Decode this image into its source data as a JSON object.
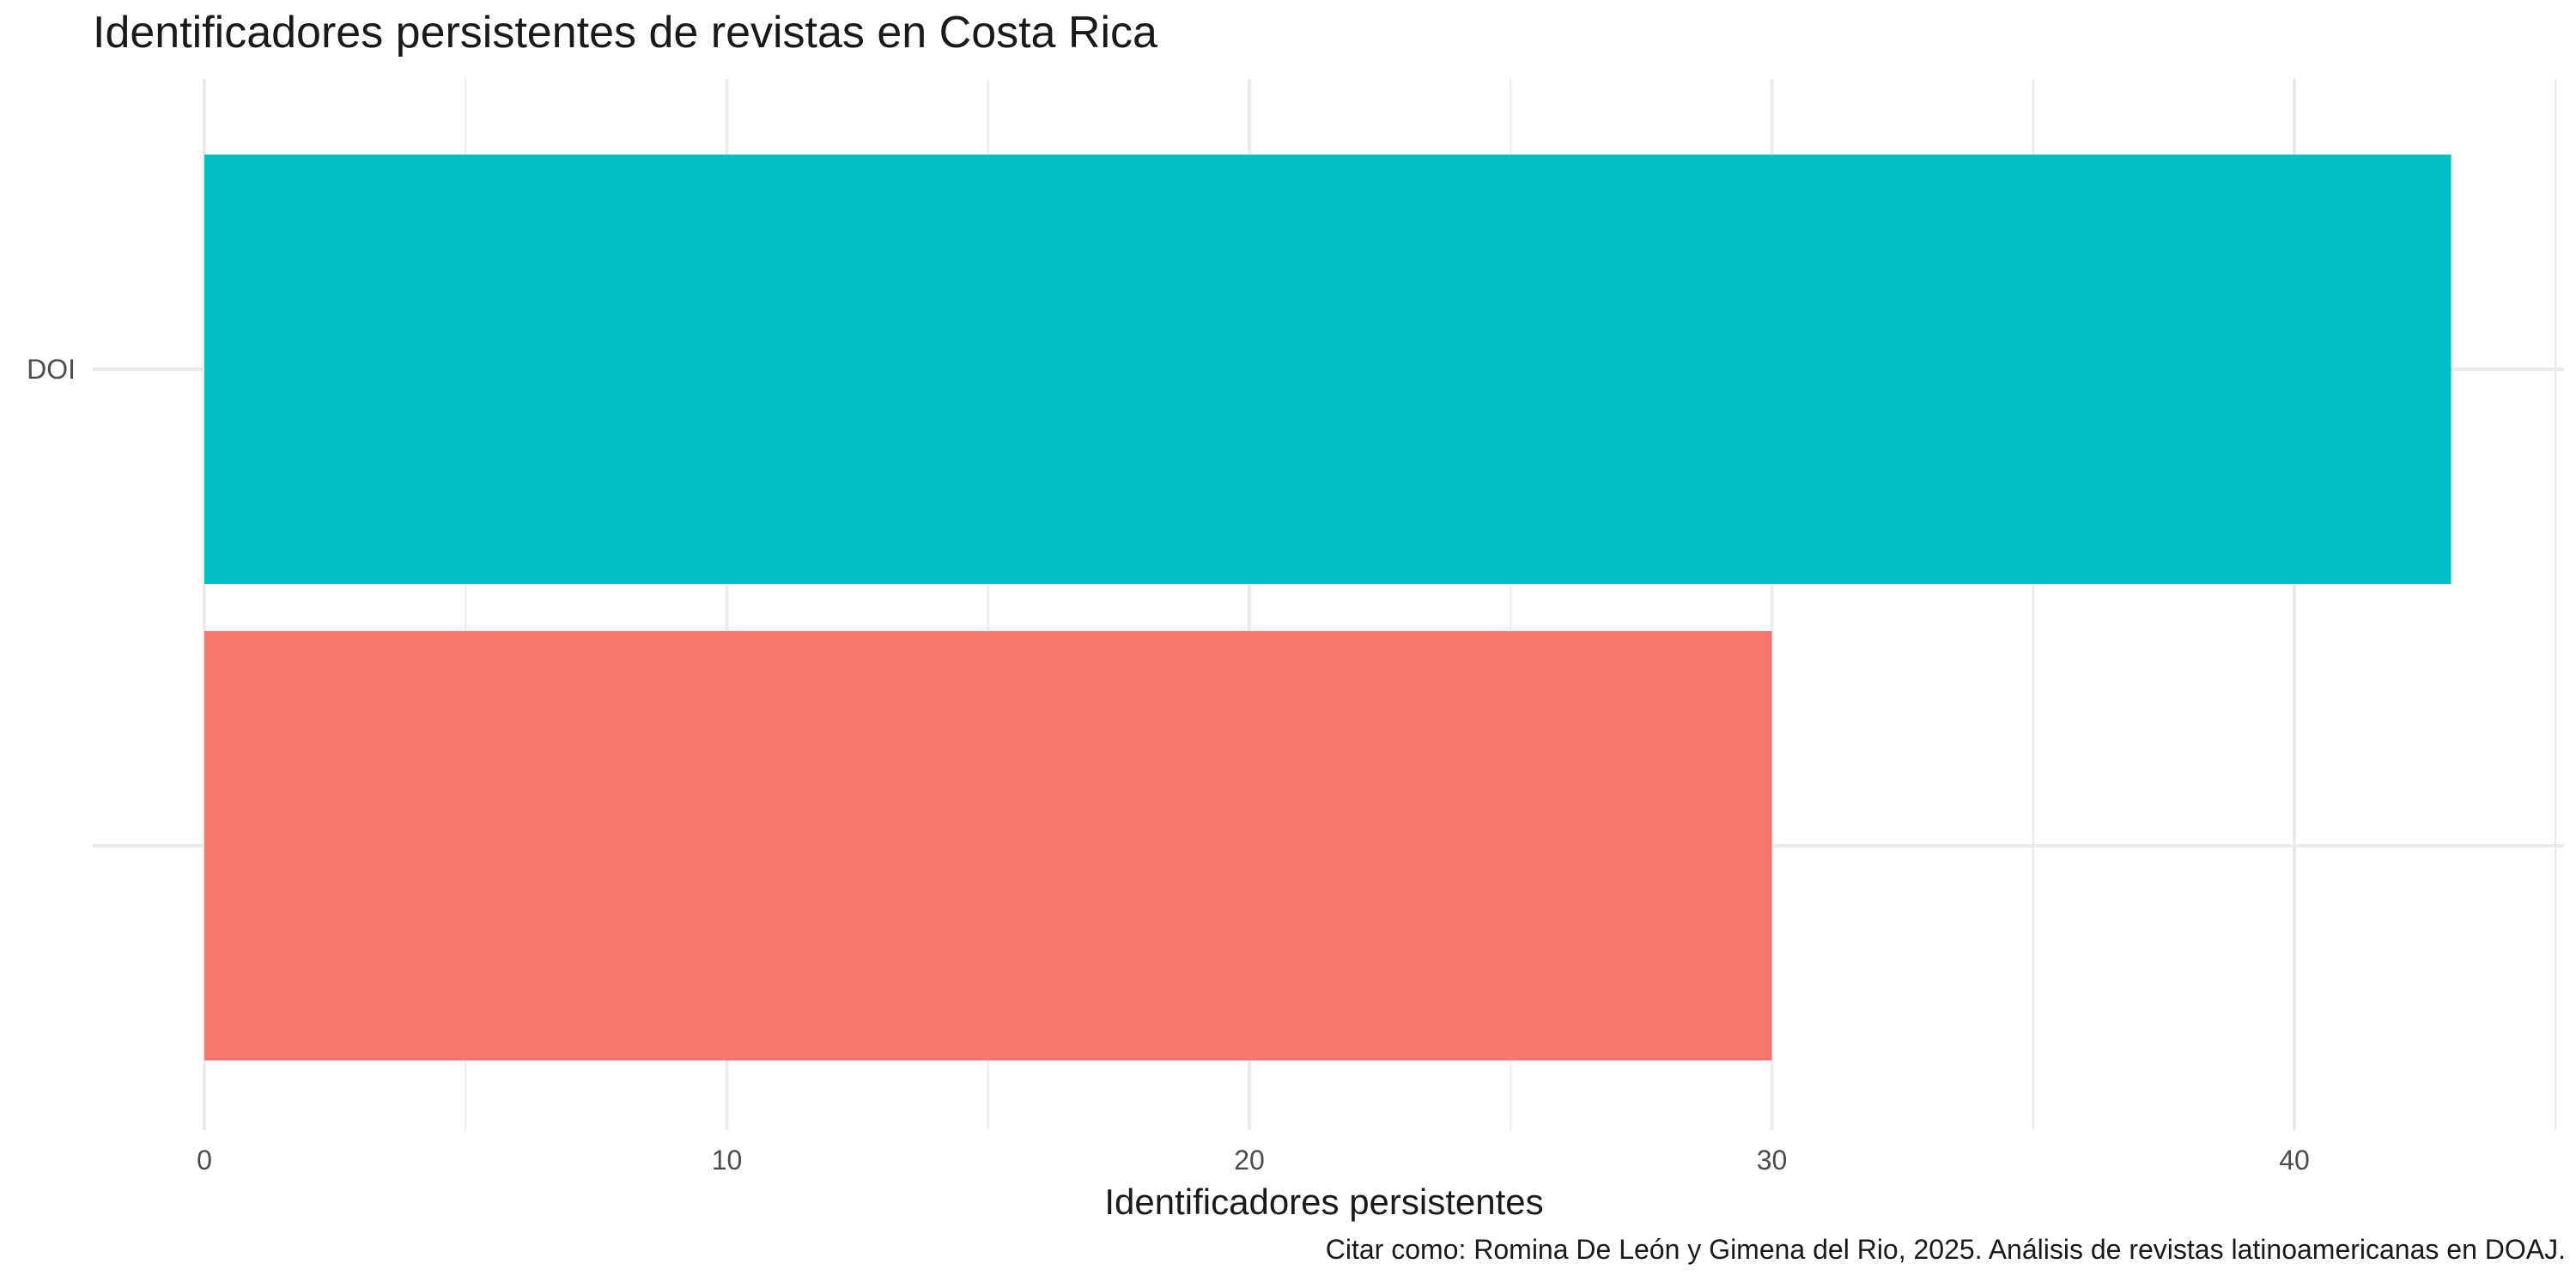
{
  "chart_data": {
    "type": "bar",
    "orientation": "horizontal",
    "title": "Identificadores persistentes de revistas en Costa Rica",
    "xlabel": "Identificadores persistentes",
    "ylabel": "",
    "categories": [
      "DOI",
      ""
    ],
    "values": [
      43,
      30
    ],
    "colors": [
      "#00BFC4",
      "#F8766D"
    ],
    "xlim": [
      0,
      45
    ],
    "x_ticks": [
      0,
      10,
      20,
      30,
      40
    ],
    "grid": true,
    "legend": "none",
    "caption": "Citar como: Romina De León y Gimena del Rio, 2025. Análisis de revistas latinoamericanas en DOAJ."
  }
}
